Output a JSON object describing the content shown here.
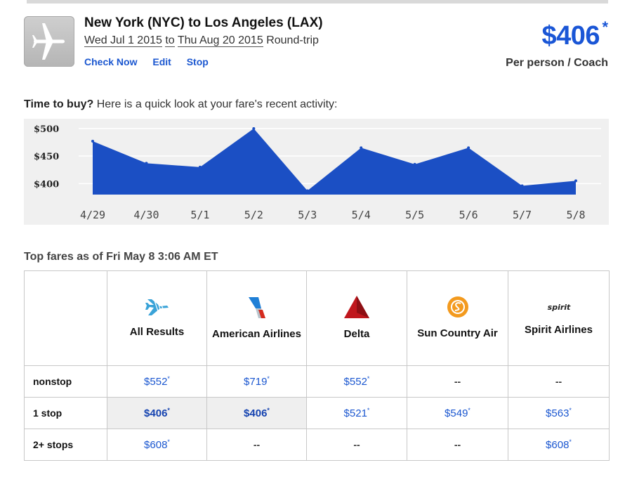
{
  "header": {
    "route": "New York (NYC) to Los Angeles (LAX)",
    "dates_depart": "Wed Jul 1 2015",
    "dates_to": "to",
    "dates_return": "Thu Aug 20 2015",
    "trip_type": "Round-trip",
    "actions": [
      "Check Now",
      "Edit",
      "Stop"
    ],
    "price": "$406",
    "price_mark": "*",
    "price_note": "Per person / Coach"
  },
  "chart_intro": {
    "lead": "Time to buy?",
    "text": " Here is a quick look at your fare's recent activity:"
  },
  "chart_data": {
    "type": "area",
    "categories": [
      "4/29",
      "4/30",
      "5/1",
      "5/2",
      "5/3",
      "5/4",
      "5/5",
      "5/6",
      "5/7",
      "5/8"
    ],
    "values": [
      477,
      437,
      430,
      500,
      387,
      465,
      435,
      465,
      396,
      405
    ],
    "yticks": [
      "$500",
      "$450",
      "$400"
    ],
    "ytick_values": [
      500,
      450,
      400
    ],
    "ylim": [
      380,
      505
    ],
    "color": "#1b4fc4",
    "grid": true
  },
  "fares": {
    "title": "Top fares as of Fri May 8 3:06 AM ET",
    "airlines": [
      {
        "name": "All Results",
        "logo": "all-results-icon"
      },
      {
        "name": "American Airlines",
        "logo": "american-airlines-logo"
      },
      {
        "name": "Delta",
        "logo": "delta-logo"
      },
      {
        "name": "Sun Country Air",
        "logo": "sun-country-logo"
      },
      {
        "name": "Spirit Airlines",
        "logo": "spirit-logo",
        "logo_text": "spirit"
      }
    ],
    "rows": [
      {
        "label": "nonstop",
        "cells": [
          "$552",
          "$719",
          "$552",
          "--",
          "--"
        ]
      },
      {
        "label": "1 stop",
        "cells": [
          "$406",
          "$406",
          "$521",
          "$549",
          "$563"
        ]
      },
      {
        "label": "2+ stops",
        "cells": [
          "$608",
          "--",
          "--",
          "--",
          "$608"
        ]
      }
    ]
  }
}
